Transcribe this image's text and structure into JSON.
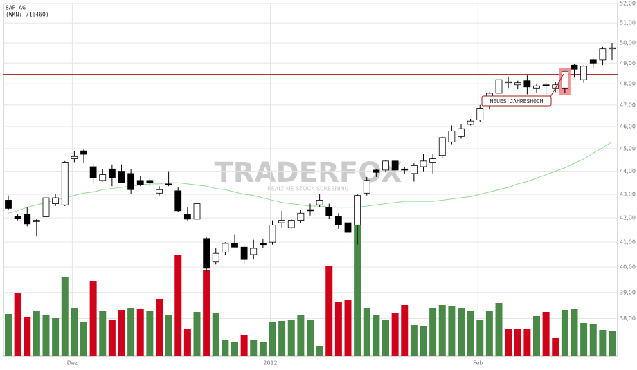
{
  "chart_data": {
    "type": "candlestick",
    "title": "SAP AG",
    "subtitle": "(WKN: 716460)",
    "watermark": "TRADERFOX",
    "watermark_subtitle": "REALTIME STOCK SCREENING",
    "annotation": "NEUES JAHRESHOCH",
    "log_scale": true,
    "grid": true,
    "ylim": [
      36.6,
      52
    ],
    "yticks": [
      {
        "value": 38,
        "label": "38,00"
      },
      {
        "value": 39,
        "label": "39,00"
      },
      {
        "value": 40,
        "label": "40,00"
      },
      {
        "value": 41,
        "label": "41,00"
      },
      {
        "value": 42,
        "label": "42,00"
      },
      {
        "value": 43,
        "label": "43,00"
      },
      {
        "value": 44,
        "label": "44,00"
      },
      {
        "value": 45,
        "label": "45,00"
      },
      {
        "value": 46,
        "label": "46,00"
      },
      {
        "value": 47,
        "label": "47,00"
      },
      {
        "value": 48,
        "label": "48,00"
      },
      {
        "value": 49,
        "label": "49,00"
      },
      {
        "value": 50,
        "label": "50,00"
      },
      {
        "value": 51,
        "label": "51,00"
      },
      {
        "value": 52,
        "label": "52,00"
      }
    ],
    "categories": [
      null,
      null,
      null,
      null,
      null,
      null,
      null,
      "Dez",
      null,
      null,
      null,
      null,
      null,
      null,
      null,
      null,
      null,
      null,
      null,
      null,
      null,
      null,
      null,
      null,
      null,
      null,
      null,
      null,
      "2012",
      null,
      null,
      null,
      null,
      null,
      null,
      null,
      null,
      null,
      null,
      null,
      null,
      null,
      null,
      null,
      null,
      null,
      null,
      null,
      null,
      null,
      "Feb",
      null,
      null,
      null,
      null,
      null,
      null,
      null,
      null,
      null,
      null,
      null,
      null,
      null,
      null
    ],
    "up_color": "#ffffff",
    "down_color": "#000000",
    "open": [
      42.75,
      42.05,
      42.15,
      41.9,
      42.05,
      42.6,
      42.55,
      44.55,
      44.9,
      44.2,
      43.6,
      44.1,
      44.0,
      43.9,
      43.6,
      43.6,
      43.05,
      43.45,
      43.15,
      42.15,
      41.95,
      41.15,
      40.2,
      40.6,
      40.95,
      40.8,
      40.5,
      40.95,
      41.0,
      41.8,
      41.6,
      41.9,
      42.35,
      42.55,
      42.45,
      42.05,
      41.8,
      41.7,
      43.05,
      44.05,
      44.05,
      44.45,
      44.1,
      43.9,
      44.2,
      44.4,
      44.7,
      45.3,
      45.55,
      46.1,
      46.3,
      47.05,
      47.55,
      48.05,
      47.95,
      48.15,
      47.8,
      47.95,
      47.8,
      47.8,
      48.9,
      48.2,
      49.15,
      49.15,
      49.7
    ],
    "high": [
      42.95,
      42.15,
      42.45,
      41.95,
      42.9,
      43.0,
      44.45,
      44.9,
      45.0,
      44.35,
      44.1,
      44.3,
      44.3,
      44.1,
      43.8,
      43.7,
      43.35,
      44.0,
      43.3,
      42.45,
      42.7,
      41.2,
      40.75,
      41.0,
      41.3,
      40.9,
      41.1,
      41.15,
      41.9,
      42.3,
      41.95,
      42.35,
      42.6,
      43.0,
      42.6,
      42.2,
      41.85,
      43.0,
      43.75,
      44.1,
      44.5,
      44.5,
      44.2,
      44.35,
      44.75,
      44.75,
      45.55,
      46.05,
      46.1,
      46.35,
      47.0,
      47.6,
      48.25,
      48.35,
      48.15,
      48.4,
      48.0,
      48.05,
      48.1,
      48.65,
      48.95,
      48.9,
      49.2,
      49.8,
      50.0
    ],
    "low": [
      42.35,
      41.9,
      41.65,
      41.25,
      41.9,
      42.5,
      42.5,
      44.4,
      44.35,
      43.45,
      43.55,
      43.35,
      43.5,
      43.0,
      43.35,
      43.35,
      42.95,
      43.35,
      42.25,
      41.9,
      41.75,
      39.8,
      40.1,
      40.5,
      40.8,
      40.1,
      40.3,
      40.75,
      40.9,
      41.6,
      41.55,
      41.8,
      42.1,
      42.45,
      41.95,
      41.55,
      41.3,
      40.9,
      42.95,
      43.75,
      43.95,
      43.9,
      43.9,
      43.55,
      44.0,
      43.9,
      44.6,
      45.2,
      45.45,
      46.05,
      46.2,
      46.8,
      47.5,
      47.8,
      47.75,
      47.5,
      47.55,
      47.5,
      47.6,
      47.55,
      48.3,
      48.05,
      48.75,
      48.9,
      49.15
    ],
    "close": [
      42.4,
      41.98,
      41.75,
      41.85,
      42.85,
      42.85,
      44.4,
      44.65,
      44.75,
      43.7,
      43.85,
      43.7,
      43.5,
      43.2,
      43.4,
      43.5,
      43.2,
      43.4,
      42.3,
      41.95,
      42.6,
      39.95,
      40.55,
      40.95,
      40.8,
      40.3,
      40.75,
      40.9,
      41.7,
      41.9,
      41.9,
      42.2,
      42.3,
      42.75,
      42.1,
      41.7,
      41.4,
      42.95,
      43.6,
      43.95,
      44.45,
      44.05,
      44.05,
      44.25,
      44.45,
      44.55,
      45.5,
      45.8,
      45.9,
      46.25,
      46.85,
      47.55,
      48.2,
      48.1,
      48.05,
      47.85,
      47.9,
      47.9,
      47.95,
      48.6,
      48.7,
      48.85,
      49.0,
      49.7,
      49.75
    ],
    "moving_average": {
      "color": "#8fdc8f",
      "values": [
        42.2,
        42.3,
        42.45,
        42.55,
        42.65,
        42.75,
        42.85,
        42.95,
        43.05,
        43.1,
        43.2,
        43.25,
        43.3,
        43.35,
        43.4,
        43.45,
        43.45,
        43.5,
        43.5,
        43.45,
        43.4,
        43.35,
        43.25,
        43.2,
        43.1,
        43.0,
        42.95,
        42.85,
        42.75,
        42.65,
        42.6,
        42.55,
        42.5,
        42.5,
        42.45,
        42.45,
        42.45,
        42.45,
        42.5,
        42.55,
        42.6,
        42.65,
        42.7,
        42.7,
        42.7,
        42.7,
        42.75,
        42.8,
        42.85,
        42.9,
        43.0,
        43.1,
        43.2,
        43.3,
        43.45,
        43.55,
        43.7,
        43.85,
        44.0,
        44.15,
        44.35,
        44.55,
        44.8,
        45.05,
        45.3
      ]
    },
    "hline": {
      "value": 48.45,
      "color": "#a31a1a"
    },
    "volume": {
      "values": [
        61,
        91,
        56,
        66,
        60,
        55,
        115,
        69,
        50,
        109,
        65,
        52,
        67,
        69,
        68,
        65,
        83,
        59,
        147,
        40,
        64,
        125,
        62,
        24,
        21,
        30,
        23,
        21,
        49,
        51,
        53,
        59,
        52,
        15,
        131,
        78,
        81,
        189,
        69,
        60,
        53,
        62,
        74,
        45,
        44,
        69,
        74,
        72,
        69,
        66,
        53,
        66,
        77,
        40,
        40,
        39,
        58,
        64,
        26,
        67,
        68,
        48,
        46,
        38,
        36
      ],
      "colors": [
        "#4a8a48",
        "#d0021b",
        "#d0021b",
        "#4a8a48",
        "#4a8a48",
        "#4a8a48",
        "#4a8a48",
        "#4a8a48",
        "#4a8a48",
        "#d0021b",
        "#4a8a48",
        "#d0021b",
        "#d0021b",
        "#4a8a48",
        "#d0021b",
        "#4a8a48",
        "#d0021b",
        "#4a8a48",
        "#d0021b",
        "#d0021b",
        "#4a8a48",
        "#d0021b",
        "#4a8a48",
        "#4a8a48",
        "#4a8a48",
        "#d0021b",
        "#4a8a48",
        "#4a8a48",
        "#4a8a48",
        "#4a8a48",
        "#4a8a48",
        "#4a8a48",
        "#4a8a48",
        "#4a8a48",
        "#d0021b",
        "#d0021b",
        "#d0021b",
        "#4a8a48",
        "#4a8a48",
        "#4a8a48",
        "#4a8a48",
        "#d0021b",
        "#d0021b",
        "#4a8a48",
        "#4a8a48",
        "#4a8a48",
        "#4a8a48",
        "#4a8a48",
        "#4a8a48",
        "#4a8a48",
        "#4a8a48",
        "#4a8a48",
        "#4a8a48",
        "#d0021b",
        "#d0021b",
        "#d0021b",
        "#4a8a48",
        "#d0021b",
        "#d0021b",
        "#4a8a48",
        "#4a8a48",
        "#4a8a48",
        "#4a8a48",
        "#4a8a48",
        "#4a8a48"
      ]
    }
  }
}
